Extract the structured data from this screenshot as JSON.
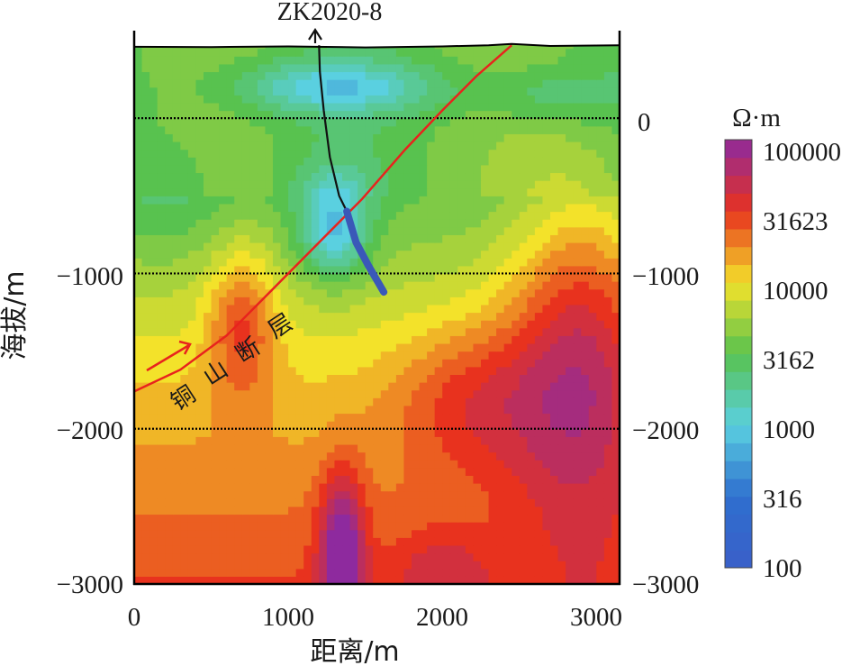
{
  "chart_data": {
    "type": "heatmap",
    "title": "",
    "xlabel": "距离/m",
    "ylabel": "海拔/m",
    "xlim": [
      0,
      3150
    ],
    "ylim": [
      -3000,
      500
    ],
    "x_ticks": [
      0,
      1000,
      2000,
      3000
    ],
    "x_tick_labels": [
      "0",
      "1000",
      "2000",
      "3000"
    ],
    "y_ticks": [
      0,
      -1000,
      -2000,
      -3000
    ],
    "y_tick_labels": [
      "0",
      "−1000",
      "−2000",
      "−3000"
    ],
    "grid": "dotted horizontal lines at 0, −1000, −2000",
    "colorbar": {
      "unit": "Ω·m",
      "scale": "log",
      "range": [
        100,
        100000
      ],
      "tick_values": [
        100000,
        31623,
        10000,
        3162,
        1000,
        316,
        100
      ],
      "tick_labels": [
        "100000",
        "31623",
        "10000",
        "3162",
        "1000",
        "316",
        "100"
      ]
    },
    "annotations": {
      "borehole": "ZK2020-8",
      "fault": "铜山断层",
      "fault_chars": [
        "铜",
        "山",
        "断",
        "层"
      ]
    },
    "borehole_path": [
      [
        1200,
        470
      ],
      [
        1205,
        300
      ],
      [
        1230,
        50
      ],
      [
        1270,
        -250
      ],
      [
        1330,
        -500
      ],
      [
        1380,
        -600
      ]
    ],
    "borehole_highlight": [
      [
        1380,
        -600
      ],
      [
        1440,
        -800
      ],
      [
        1520,
        -950
      ],
      [
        1620,
        -1120
      ]
    ],
    "fault_trace": [
      [
        0,
        -1760
      ],
      [
        300,
        -1620
      ],
      [
        600,
        -1400
      ],
      [
        900,
        -1100
      ],
      [
        1200,
        -800
      ],
      [
        1480,
        -520
      ],
      [
        1760,
        -200
      ],
      [
        2000,
        50
      ],
      [
        2220,
        270
      ],
      [
        2450,
        470
      ]
    ],
    "surface_profile": [
      [
        0,
        460
      ],
      [
        500,
        458
      ],
      [
        1000,
        462
      ],
      [
        1500,
        456
      ],
      [
        2000,
        462
      ],
      [
        2300,
        470
      ],
      [
        2450,
        478
      ],
      [
        2700,
        465
      ],
      [
        3150,
        470
      ]
    ]
  },
  "colors": {
    "background": "#ffffff",
    "frame": "#000000",
    "fault_line": "#e8231d",
    "borehole_line": "#111111",
    "borehole_highlight": "#3a58b8",
    "palette_log_stops": [
      {
        "value": 100,
        "color": "#3a5fc8"
      },
      {
        "value": 316,
        "color": "#2f6fcf"
      },
      {
        "value": 1000,
        "color": "#5ad0e0"
      },
      {
        "value": 3162,
        "color": "#58c24f"
      },
      {
        "value": 10000,
        "color": "#f3e22a"
      },
      {
        "value": 31623,
        "color": "#e8321e"
      },
      {
        "value": 100000,
        "color": "#8e2a9e"
      }
    ]
  }
}
